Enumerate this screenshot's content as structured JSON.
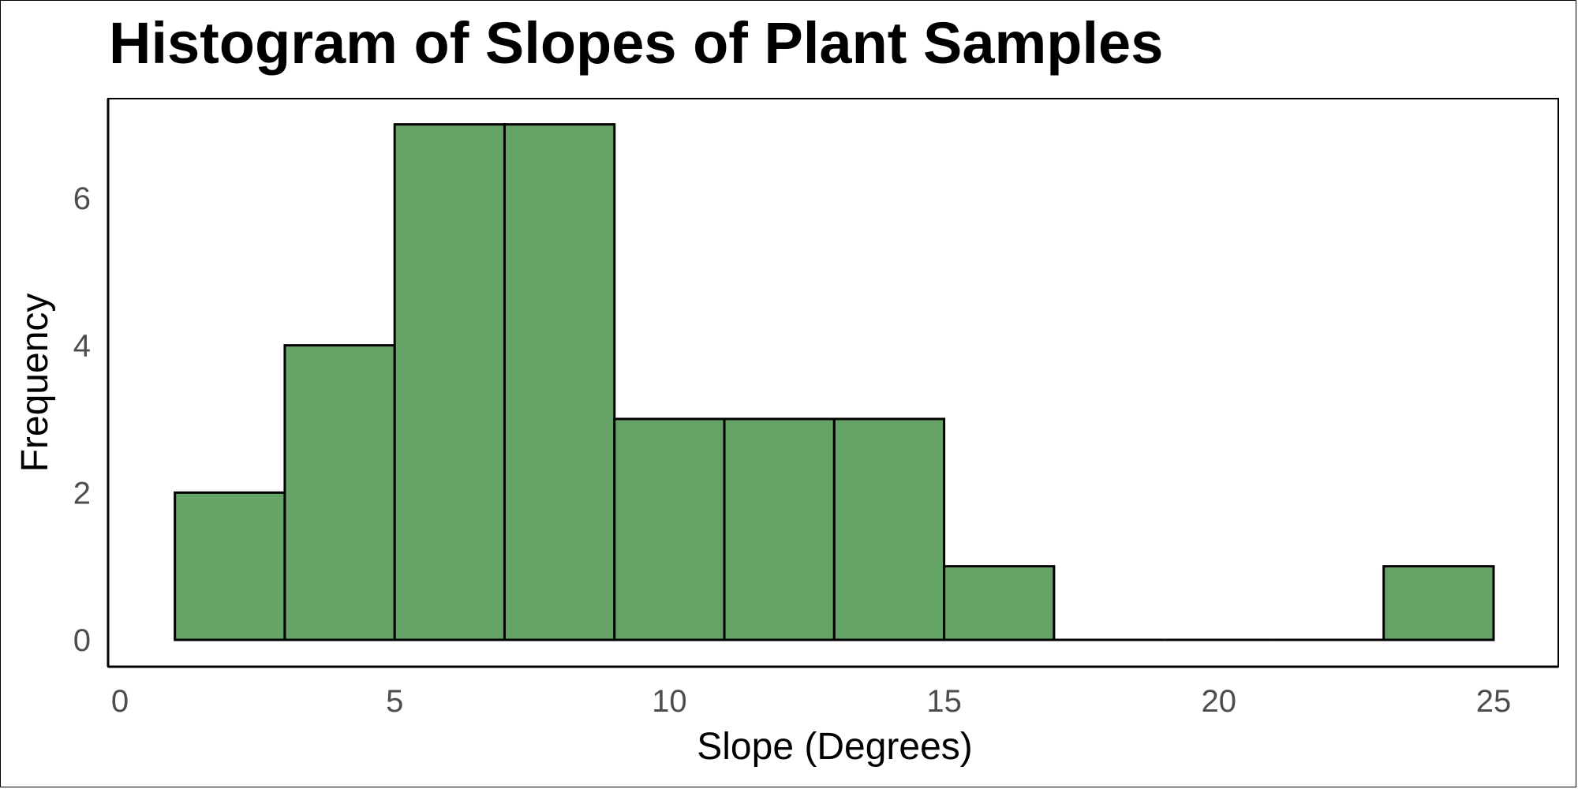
{
  "chart_data": {
    "type": "bar",
    "title": "Histogram of Slopes of Plant Samples",
    "xlabel": "Slope (Degrees)",
    "ylabel": "Frequency",
    "bin_edges": [
      1,
      3,
      5,
      7,
      9,
      11,
      13,
      15,
      17,
      19,
      21,
      23,
      25
    ],
    "values": [
      2,
      4,
      7,
      7,
      3,
      3,
      3,
      1,
      0,
      0,
      0,
      1
    ],
    "xlim": [
      0,
      26.2
    ],
    "ylim": [
      0,
      7.4
    ],
    "x_ticks": [
      0,
      5,
      10,
      15,
      20,
      25
    ],
    "y_ticks": [
      0,
      2,
      4,
      6
    ],
    "bar_color": "#66a366",
    "bar_edge_color": "#000000",
    "grid": false,
    "legend": "none"
  }
}
